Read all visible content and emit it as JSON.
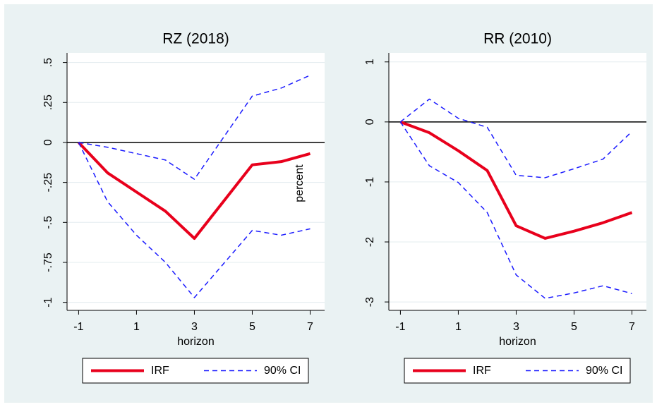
{
  "chart_data": [
    {
      "type": "line",
      "title": "RZ (2018)",
      "xlabel": "horizon",
      "x": [
        -1,
        0,
        1,
        2,
        3,
        4,
        5,
        6,
        7
      ],
      "xlim": [
        -1.4,
        7.5
      ],
      "xticks": [
        -1,
        1,
        3,
        5,
        7
      ],
      "ylim": [
        -1.05,
        0.56
      ],
      "yticks": [
        {
          "value": 0.5,
          "label": ".5"
        },
        {
          "value": 0.25,
          "label": ".25"
        },
        0,
        {
          "value": -0.25,
          "label": "-.25"
        },
        {
          "value": -0.5,
          "label": "-.5"
        },
        {
          "value": -0.75,
          "label": "-.75"
        },
        -1
      ],
      "grid": true,
      "refline": 0,
      "series": [
        {
          "name": "IRF",
          "color": "#e8001c",
          "values": [
            0,
            -0.19,
            -0.31,
            -0.43,
            -0.6,
            -0.37,
            -0.14,
            -0.12,
            -0.07
          ]
        },
        {
          "name": "90% CI",
          "color": "#1a1aff",
          "dashed": true,
          "upper": [
            0,
            -0.03,
            -0.07,
            -0.11,
            -0.23,
            0.03,
            0.29,
            0.34,
            0.42
          ],
          "lower": [
            0,
            -0.37,
            -0.58,
            -0.75,
            -0.97,
            -0.76,
            -0.55,
            -0.58,
            -0.54
          ]
        }
      ]
    },
    {
      "type": "line",
      "title": "RR (2010)",
      "xlabel": "horizon",
      "ylabel": "percent",
      "x": [
        -1,
        0,
        1,
        2,
        3,
        4,
        5,
        6,
        7
      ],
      "xlim": [
        -1.4,
        7.5
      ],
      "xticks": [
        -1,
        1,
        3,
        5,
        7
      ],
      "ylim": [
        -3.14,
        1.15
      ],
      "yticks": [
        1,
        0,
        -1,
        -2,
        -3
      ],
      "grid": true,
      "refline": 0,
      "series": [
        {
          "name": "IRF",
          "color": "#e8001c",
          "values": [
            0,
            -0.18,
            -0.48,
            -0.81,
            -1.73,
            -1.94,
            -1.82,
            -1.68,
            -1.51
          ]
        },
        {
          "name": "90% CI",
          "color": "#1a1aff",
          "dashed": true,
          "upper": [
            0,
            0.38,
            0.06,
            -0.09,
            -0.89,
            -0.93,
            -0.78,
            -0.62,
            -0.16
          ],
          "lower": [
            0,
            -0.73,
            -1.01,
            -1.51,
            -2.55,
            -2.94,
            -2.85,
            -2.73,
            -2.86
          ]
        }
      ]
    }
  ]
}
